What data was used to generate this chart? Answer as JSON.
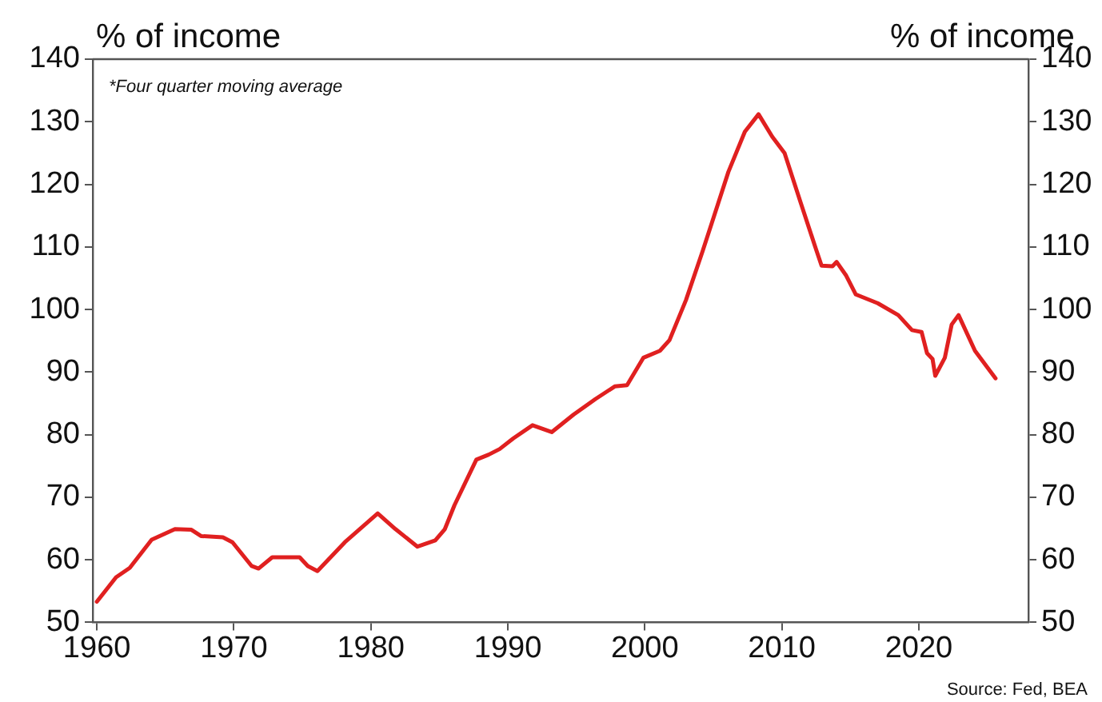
{
  "chart_data": {
    "type": "line",
    "ylabel": "% of income",
    "y2label": "% of income",
    "x": [
      1960,
      1961.4,
      1962.4,
      1964,
      1965.7,
      1966.9,
      1967.6,
      1969.2,
      1969.9,
      1971.3,
      1971.8,
      1972.8,
      1974.8,
      1975.4,
      1976.1,
      1978.1,
      1980.5,
      1981.8,
      1983.4,
      1984.7,
      1985.4,
      1986.1,
      1987.7,
      1988.6,
      1989.4,
      1990.4,
      1991.8,
      1993.2,
      1994.8,
      1996.4,
      1997.8,
      1998.7,
      1999.9,
      2001.1,
      2001.8,
      2003,
      2004.2,
      2004.9,
      2006.1,
      2007.3,
      2008.3,
      2009.3,
      2010.2,
      2011.4,
      2012.5,
      2012.9,
      2013.7,
      2014,
      2014.7,
      2015.4,
      2017,
      2018.5,
      2019.5,
      2020.2,
      2020.6,
      2021,
      2021.2,
      2021.9,
      2022.4,
      2022.9,
      2024.1,
      2025.6
    ],
    "series": [
      {
        "color": "#e02020",
        "values": [
          53.3,
          57.2,
          58.7,
          63.2,
          64.9,
          64.8,
          63.8,
          63.6,
          62.8,
          59,
          58.6,
          60.4,
          60.4,
          59,
          58.2,
          62.8,
          67.4,
          64.9,
          62.1,
          63.1,
          64.9,
          68.7,
          76,
          76.8,
          77.7,
          79.4,
          81.5,
          80.4,
          83.2,
          85.7,
          87.7,
          87.9,
          92.3,
          93.4,
          95.1,
          101.5,
          109.2,
          113.9,
          122,
          128.4,
          131.2,
          127.6,
          125,
          116.9,
          109.6,
          107,
          106.9,
          107.6,
          105.4,
          102.4,
          101,
          99.1,
          96.7,
          96.4,
          93,
          92.1,
          89.4,
          92.3,
          97.6,
          99.1,
          93.4,
          89
        ]
      }
    ],
    "xlim": [
      1959.7,
      2028
    ],
    "xticks": [
      1960,
      1970,
      1980,
      1990,
      2000,
      2010,
      2020
    ],
    "ylim": [
      50,
      140
    ],
    "yticks": [
      50,
      60,
      70,
      80,
      90,
      100,
      110,
      120,
      130,
      140
    ],
    "y2lim": [
      50,
      140
    ],
    "y2ticks": [
      50,
      60,
      70,
      80,
      90,
      100,
      110,
      120,
      130,
      140
    ],
    "grid": false,
    "legend": false,
    "marker": "none",
    "line_style": "solid",
    "annotations": [
      "*Four quarter moving average",
      "Source: Fed, BEA"
    ]
  }
}
